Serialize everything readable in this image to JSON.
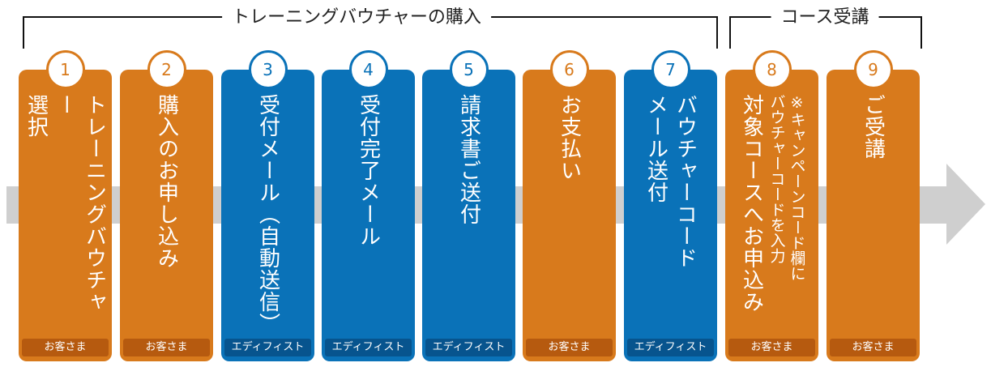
{
  "sections": [
    {
      "label": "トレーニングバウチャーの購入"
    },
    {
      "label": "コース受講"
    }
  ],
  "steps": [
    {
      "number": "1",
      "title": "トレーニングバウチャー\n選択",
      "actor": "お客さま",
      "color": "#d87a1c"
    },
    {
      "number": "2",
      "title": "購入のお申し込み",
      "actor": "お客さま",
      "color": "#d87a1c"
    },
    {
      "number": "3",
      "title": "受付メール（自動送信）",
      "actor": "エディフィスト",
      "color": "#0a72b8"
    },
    {
      "number": "4",
      "title": "受付完了メール",
      "actor": "エディフィスト",
      "color": "#0a72b8"
    },
    {
      "number": "5",
      "title": "請求書ご送付",
      "actor": "エディフィスト",
      "color": "#0a72b8"
    },
    {
      "number": "6",
      "title": "お支払い",
      "actor": "お客さま",
      "color": "#d87a1c"
    },
    {
      "number": "7",
      "title": "バウチャーコード\nメール送付",
      "actor": "エディフィスト",
      "color": "#0a72b8"
    },
    {
      "number": "8",
      "title": "対象コースへお申込み",
      "note": "※キャンペーンコード欄に\nバウチャーコードを入力",
      "actor": "お客さま",
      "color": "#d87a1c"
    },
    {
      "number": "9",
      "title": "ご受講",
      "actor": "お客さま",
      "color": "#d87a1c"
    }
  ]
}
